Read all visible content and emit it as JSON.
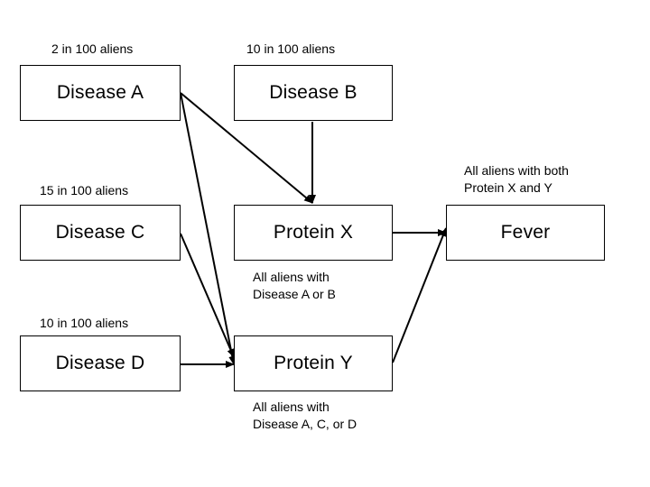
{
  "nodes": {
    "disease_a": {
      "label": "Disease A",
      "count": "2 in 100 aliens"
    },
    "disease_b": {
      "label": "Disease B",
      "count": "10 in 100 aliens"
    },
    "disease_c": {
      "label": "Disease C",
      "count": "15 in 100 aliens"
    },
    "disease_d": {
      "label": "Disease D",
      "count": "10 in 100 aliens"
    },
    "protein_x": {
      "label": "Protein X",
      "note": "All aliens with\nDisease A or B"
    },
    "protein_y": {
      "label": "Protein Y",
      "note": "All aliens with\nDisease A, C, or D"
    },
    "fever": {
      "label": "Fever",
      "note": "All aliens with both\nProtein X and Y"
    }
  },
  "edges": [
    {
      "from": "Disease A",
      "to": "Protein X"
    },
    {
      "from": "Disease A",
      "to": "Protein Y"
    },
    {
      "from": "Disease B",
      "to": "Protein X"
    },
    {
      "from": "Disease C",
      "to": "Protein Y"
    },
    {
      "from": "Disease D",
      "to": "Protein Y"
    },
    {
      "from": "Protein X",
      "to": "Fever"
    },
    {
      "from": "Protein Y",
      "to": "Fever"
    }
  ],
  "colors": {
    "stroke": "#000000",
    "background": "#ffffff"
  }
}
